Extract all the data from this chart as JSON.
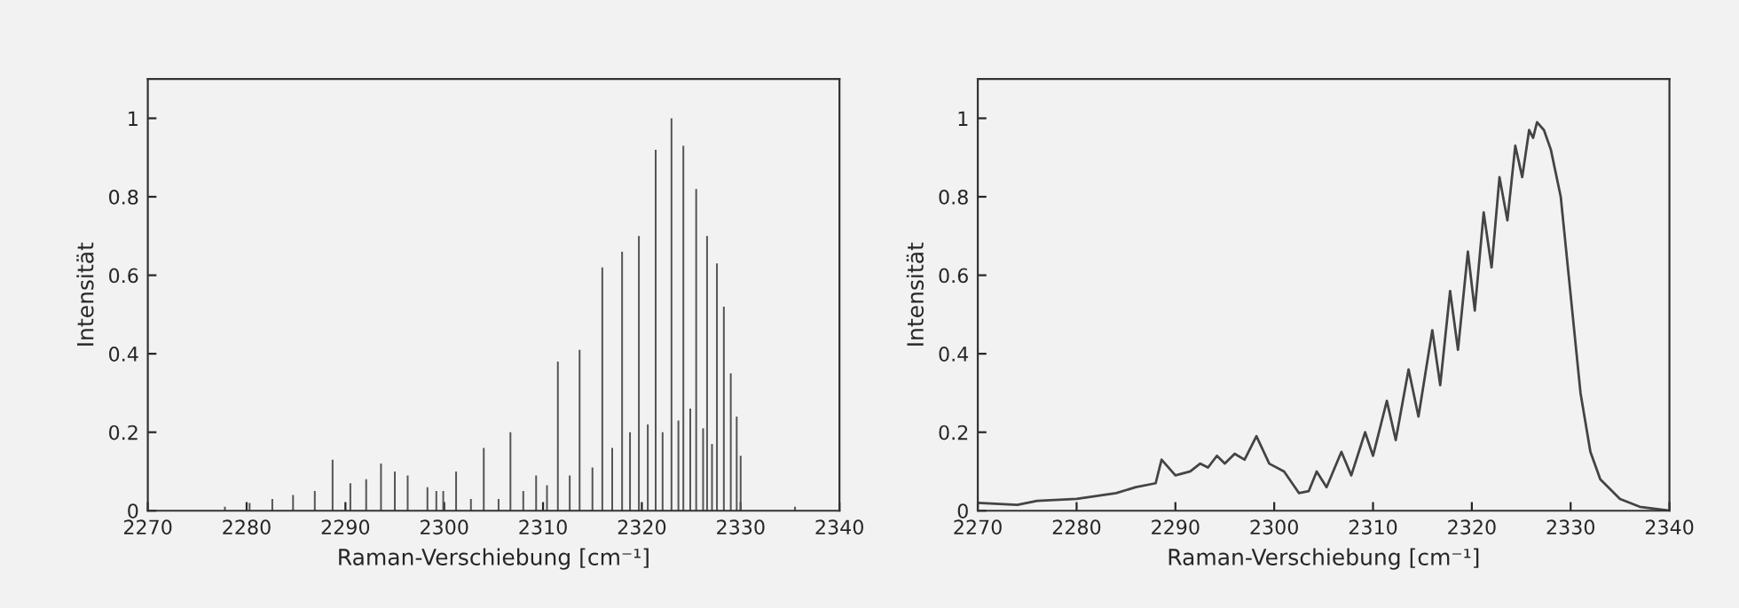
{
  "chart_data": [
    {
      "type": "bar",
      "xlabel": "Raman-Verschiebung [cm⁻¹]",
      "ylabel": "Intensität",
      "xlim": [
        2270,
        2340
      ],
      "ylim": [
        0,
        1.1
      ],
      "xticks": [
        2270,
        2280,
        2290,
        2300,
        2310,
        2320,
        2330,
        2340
      ],
      "yticks": [
        0,
        0.2,
        0.4,
        0.6,
        0.8,
        1
      ],
      "grid": false,
      "legend": false,
      "series": [
        {
          "color": "#555555",
          "x": [
            2277.8,
            2280.3,
            2282.6,
            2284.7,
            2286.9,
            2288.7,
            2290.5,
            2292.1,
            2293.6,
            2295.0,
            2296.3,
            2298.3,
            2299.2,
            2299.9,
            2301.2,
            2302.7,
            2304.0,
            2305.5,
            2306.7,
            2308.0,
            2309.3,
            2310.4,
            2311.5,
            2312.7,
            2313.7,
            2315.0,
            2316.0,
            2317.0,
            2318.0,
            2318.8,
            2319.7,
            2320.6,
            2321.4,
            2322.1,
            2323.0,
            2323.7,
            2324.2,
            2324.9,
            2325.5,
            2326.2,
            2326.6,
            2327.1,
            2327.6,
            2328.3,
            2329.0,
            2329.6,
            2330.0,
            2335.5
          ],
          "values": [
            0.01,
            0.02,
            0.03,
            0.04,
            0.05,
            0.13,
            0.07,
            0.08,
            0.12,
            0.1,
            0.09,
            0.06,
            0.05,
            0.05,
            0.1,
            0.03,
            0.16,
            0.03,
            0.2,
            0.05,
            0.09,
            0.065,
            0.38,
            0.09,
            0.41,
            0.11,
            0.62,
            0.16,
            0.66,
            0.2,
            0.7,
            0.22,
            0.92,
            0.2,
            1.0,
            0.23,
            0.93,
            0.26,
            0.82,
            0.21,
            0.7,
            0.17,
            0.63,
            0.52,
            0.35,
            0.24,
            0.14,
            0.01
          ]
        }
      ]
    },
    {
      "type": "line",
      "xlabel": "Raman-Verschiebung [cm⁻¹]",
      "ylabel": "Intensität",
      "xlim": [
        2270,
        2340
      ],
      "ylim": [
        0,
        1.1
      ],
      "xticks": [
        2270,
        2280,
        2290,
        2300,
        2310,
        2320,
        2330,
        2340
      ],
      "yticks": [
        0,
        0.2,
        0.4,
        0.6,
        0.8,
        1
      ],
      "grid": false,
      "legend": false,
      "marker": "none",
      "line_style": "solid",
      "series": [
        {
          "color": "#444444",
          "x": [
            2270,
            2274,
            2276,
            2280,
            2284,
            2286,
            2288,
            2288.6,
            2290,
            2291.5,
            2292.5,
            2293.3,
            2294.2,
            2295,
            2296,
            2297,
            2298.2,
            2299.5,
            2301,
            2302.5,
            2303.5,
            2304.3,
            2305.3,
            2306.8,
            2307.8,
            2309.2,
            2310,
            2311.4,
            2312.3,
            2313.6,
            2314.6,
            2316,
            2316.8,
            2317.8,
            2318.6,
            2319.6,
            2320.3,
            2321.2,
            2322,
            2322.8,
            2323.6,
            2324.4,
            2325.1,
            2325.8,
            2326.2,
            2326.6,
            2327.3,
            2328,
            2329,
            2330,
            2331,
            2332,
            2333,
            2335,
            2337,
            2340
          ],
          "values": [
            0.02,
            0.015,
            0.025,
            0.03,
            0.045,
            0.06,
            0.07,
            0.13,
            0.09,
            0.1,
            0.12,
            0.11,
            0.14,
            0.12,
            0.145,
            0.13,
            0.19,
            0.12,
            0.1,
            0.045,
            0.05,
            0.1,
            0.06,
            0.15,
            0.09,
            0.2,
            0.14,
            0.28,
            0.18,
            0.36,
            0.24,
            0.46,
            0.32,
            0.56,
            0.41,
            0.66,
            0.51,
            0.76,
            0.62,
            0.85,
            0.74,
            0.93,
            0.85,
            0.97,
            0.95,
            0.99,
            0.97,
            0.92,
            0.8,
            0.55,
            0.3,
            0.15,
            0.08,
            0.03,
            0.01,
            0.0
          ]
        }
      ]
    }
  ]
}
